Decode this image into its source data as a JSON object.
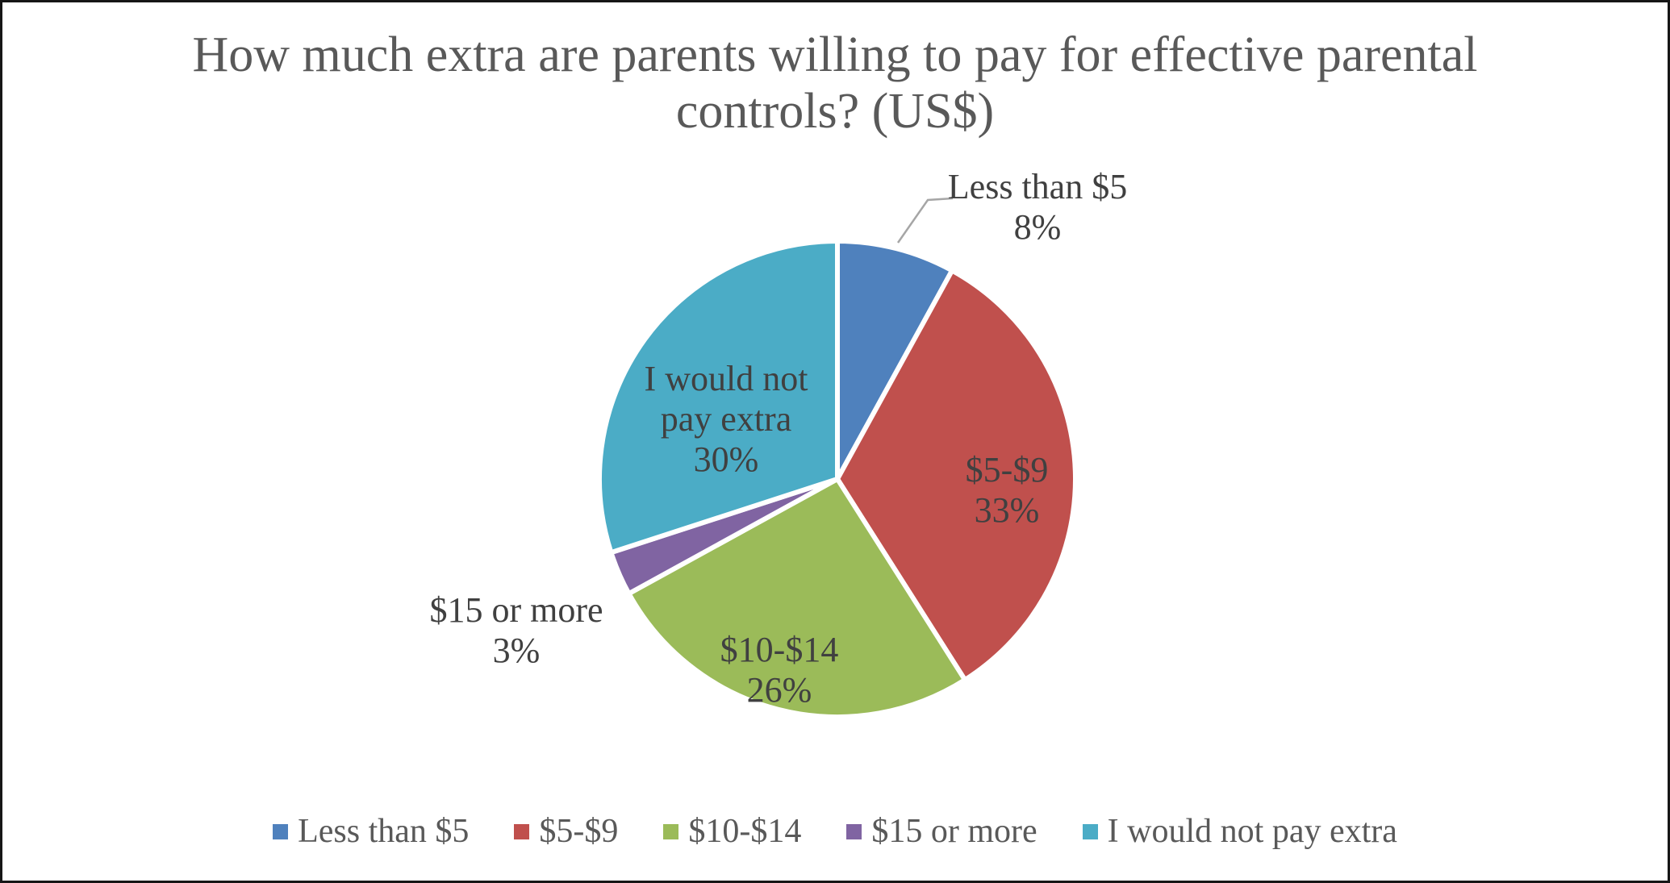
{
  "title": {
    "text": "How much extra are parents willing to pay for effective parental controls? (US$)"
  },
  "chart_data": {
    "type": "pie",
    "title": "How much extra are parents willing to pay for effective parental controls? (US$)",
    "categories": [
      "Less than $5",
      "$5-$9",
      "$10-$14",
      "$15 or more",
      "I would not pay extra"
    ],
    "values": [
      8,
      33,
      26,
      3,
      30
    ],
    "unit": "percent",
    "colors": [
      "#4F81BD",
      "#C0504D",
      "#9BBB59",
      "#8064A2",
      "#4BACC6"
    ],
    "start_at": "12-o-clock",
    "direction": "clockwise",
    "legend_position": "bottom",
    "slice_border_color": "#FFFFFF",
    "slice_labels": [
      {
        "category": "Less than $5",
        "pct": "8%",
        "placement": "outside-top-right",
        "leader_line": true
      },
      {
        "category": "$5-$9",
        "pct": "33%",
        "placement": "inside"
      },
      {
        "category": "$10-$14",
        "pct": "26%",
        "placement": "inside"
      },
      {
        "category": "$15 or more",
        "pct": "3%",
        "placement": "outside-left"
      },
      {
        "category": "I would not pay extra",
        "pct": "30%",
        "placement": "inside"
      }
    ]
  },
  "legend": {
    "items": [
      {
        "label": "Less than $5",
        "color": "#4F81BD"
      },
      {
        "label": "$5-$9",
        "color": "#C0504D"
      },
      {
        "label": "$10-$14",
        "color": "#9BBB59"
      },
      {
        "label": "$15 or more",
        "color": "#8064A2"
      },
      {
        "label": "I would not pay extra",
        "color": "#4BACC6"
      }
    ]
  },
  "style": {
    "title_color": "#595959",
    "label_color": "#404040",
    "legend_text_color": "#595959",
    "leader_line_color": "#A6A6A6",
    "frame_border_color": "#161616",
    "background": "#FFFFFF"
  }
}
